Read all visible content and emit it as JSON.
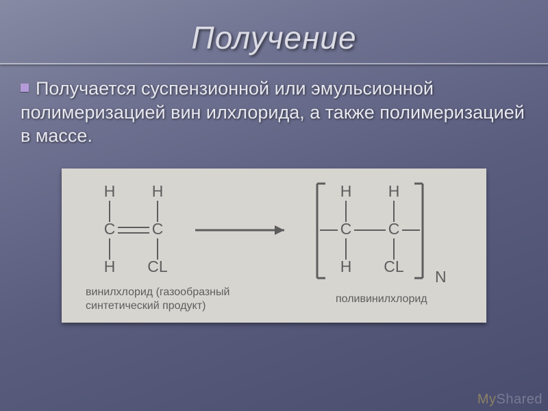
{
  "title": "Получение",
  "body_text": "Получается суспензионной или эмульсионной полимеризацией вин илхлорида, а также полимеризацией в массе.",
  "diagram": {
    "type": "chemical-structure",
    "background_color": "#d7d5d0",
    "stroke_color": "#5d5d5d",
    "text_color": "#5d5d5d",
    "font_family": "Arial",
    "atom_font_size": 23,
    "caption_font_size": 16,
    "bracket_stroke_width": 3,
    "bond_stroke_width": 2,
    "monomer": {
      "top_atoms": [
        "H",
        "H"
      ],
      "mid_atoms": [
        "C",
        "C"
      ],
      "bot_atoms": [
        "H",
        "CL"
      ],
      "double_bond": true,
      "caption_lines": [
        "винилхлорид (газообразный",
        "синтетический продукт)"
      ]
    },
    "arrow": {
      "length": 130
    },
    "polymer": {
      "top_atoms": [
        "H",
        "H"
      ],
      "mid_atoms": [
        "C",
        "C"
      ],
      "bot_atoms": [
        "H",
        "CL"
      ],
      "double_bond": false,
      "brackets": true,
      "subscript": "N",
      "caption": "поливинилхлорид"
    }
  },
  "watermark": {
    "prefix": "My",
    "suffix": "Shared"
  }
}
